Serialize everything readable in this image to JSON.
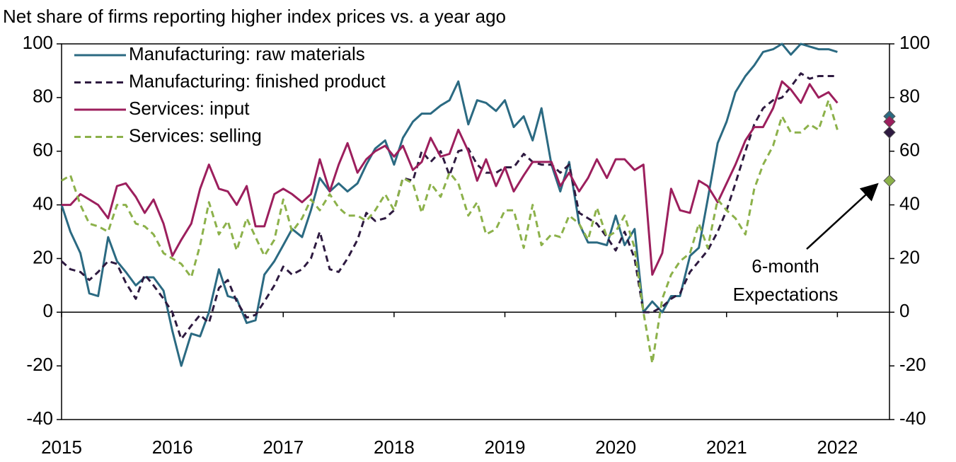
{
  "chart_data": {
    "type": "line",
    "title": "Net share of firms reporting higher index prices vs. a year ago",
    "x": [
      2015,
      2015.08,
      2015.17,
      2015.25,
      2015.33,
      2015.42,
      2015.5,
      2015.58,
      2015.67,
      2015.75,
      2015.83,
      2015.92,
      2016,
      2016.08,
      2016.17,
      2016.25,
      2016.33,
      2016.42,
      2016.5,
      2016.58,
      2016.67,
      2016.75,
      2016.83,
      2016.92,
      2017,
      2017.08,
      2017.17,
      2017.25,
      2017.33,
      2017.42,
      2017.5,
      2017.58,
      2017.67,
      2017.75,
      2017.83,
      2017.92,
      2018,
      2018.08,
      2018.17,
      2018.25,
      2018.33,
      2018.42,
      2018.5,
      2018.58,
      2018.67,
      2018.75,
      2018.83,
      2018.92,
      2019,
      2019.08,
      2019.17,
      2019.25,
      2019.33,
      2019.42,
      2019.5,
      2019.58,
      2019.67,
      2019.75,
      2019.83,
      2019.92,
      2020,
      2020.08,
      2020.17,
      2020.25,
      2020.33,
      2020.42,
      2020.5,
      2020.58,
      2020.67,
      2020.75,
      2020.83,
      2020.92,
      2021,
      2021.08,
      2021.17,
      2021.25,
      2021.33,
      2021.42,
      2021.5,
      2021.58,
      2021.67,
      2021.75,
      2021.83,
      2021.92,
      2022
    ],
    "xlim": [
      2015,
      2022.47
    ],
    "xticks": [
      2015,
      2016,
      2017,
      2018,
      2019,
      2020,
      2021,
      2022
    ],
    "ylim": [
      -40,
      100
    ],
    "yticks": [
      -40,
      -20,
      0,
      20,
      40,
      60,
      80,
      100
    ],
    "y2lim": [
      -40,
      100
    ],
    "y2ticks": [
      -40,
      -20,
      0,
      20,
      40,
      60,
      80,
      100
    ],
    "annotation_lines": [
      "6-month",
      "Expectations"
    ],
    "series": [
      {
        "name": "Manufacturing: raw materials",
        "color": "#2b6a82",
        "dash": false,
        "expectation": 73,
        "values": [
          40,
          30,
          22,
          7,
          6,
          28,
          19,
          15,
          10,
          13,
          13,
          8,
          -7,
          -20,
          -8,
          -9,
          0,
          16,
          6,
          5,
          -4,
          -3,
          14,
          19,
          25,
          31,
          28,
          38,
          50,
          45,
          48,
          45,
          48,
          55,
          61,
          64,
          55,
          65,
          71,
          74,
          74,
          77,
          79,
          86,
          70,
          79,
          78,
          75,
          79,
          69,
          73,
          64,
          76,
          55,
          45,
          56,
          33,
          26,
          26,
          25,
          36,
          25,
          31,
          0,
          4,
          0,
          6,
          6,
          21,
          24,
          42,
          63,
          71,
          82,
          88,
          92,
          97,
          98,
          100,
          96,
          100,
          99,
          98,
          98,
          97
        ]
      },
      {
        "name": "Manufacturing: finished product",
        "color": "#2e1a40",
        "dash": true,
        "expectation": 67,
        "values": [
          19,
          16,
          15,
          12,
          15,
          19,
          18,
          11,
          5,
          14,
          10,
          5,
          0,
          -10,
          -5,
          -1,
          -4,
          9,
          12,
          4,
          -2,
          -1,
          4,
          10,
          17,
          14,
          16,
          20,
          30,
          16,
          15,
          20,
          27,
          37,
          34,
          35,
          38,
          50,
          49,
          60,
          56,
          60,
          51,
          60,
          61,
          55,
          52,
          52,
          54,
          54,
          59,
          56,
          55,
          55,
          52,
          55,
          37,
          35,
          33,
          28,
          23,
          30,
          20,
          0,
          0,
          2,
          5,
          7,
          15,
          19,
          23,
          30,
          38,
          48,
          60,
          70,
          76,
          79,
          80,
          84,
          89,
          87,
          88,
          88,
          88
        ]
      },
      {
        "name": "Services: input",
        "color": "#9c1f5d",
        "dash": false,
        "expectation": 71,
        "values": [
          40,
          40,
          44,
          42,
          40,
          35,
          47,
          48,
          43,
          37,
          42,
          33,
          21,
          27,
          33,
          46,
          55,
          46,
          45,
          40,
          47,
          32,
          32,
          44,
          46,
          44,
          41,
          44,
          57,
          45,
          55,
          63,
          52,
          57,
          60,
          62,
          58,
          62,
          53,
          56,
          65,
          58,
          59,
          68,
          60,
          49,
          57,
          47,
          54,
          45,
          51,
          56,
          56,
          56,
          47,
          52,
          45,
          50,
          57,
          50,
          57,
          57,
          53,
          55,
          14,
          22,
          46,
          38,
          37,
          49,
          47,
          41,
          48,
          55,
          64,
          69,
          69,
          76,
          86,
          83,
          78,
          85,
          80,
          82,
          78
        ]
      },
      {
        "name": "Services: selling",
        "color": "#8cb14a",
        "dash": true,
        "expectation": 49,
        "values": [
          49,
          51,
          40,
          33,
          32,
          30,
          40,
          40,
          33,
          32,
          29,
          22,
          20,
          18,
          13,
          25,
          41,
          29,
          34,
          23,
          35,
          28,
          21,
          27,
          42,
          30,
          35,
          42,
          38,
          44,
          39,
          36,
          36,
          34,
          38,
          44,
          38,
          50,
          48,
          37,
          48,
          43,
          52,
          48,
          36,
          41,
          29,
          31,
          38,
          38,
          24,
          40,
          25,
          29,
          28,
          36,
          33,
          27,
          39,
          28,
          30,
          36,
          24,
          0,
          -19,
          5,
          14,
          19,
          22,
          33,
          24,
          42,
          38,
          35,
          29,
          46,
          55,
          62,
          73,
          67,
          67,
          70,
          68,
          79,
          68
        ]
      }
    ]
  }
}
